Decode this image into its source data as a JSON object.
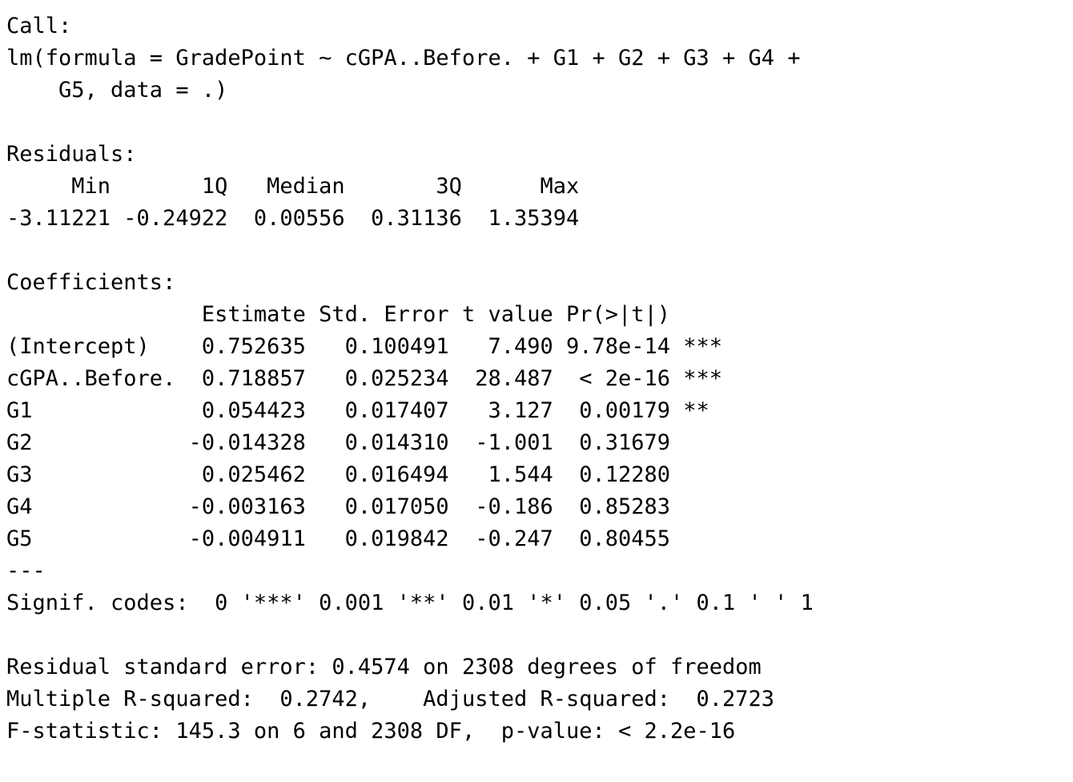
{
  "output": {
    "call": {
      "header": "Call:",
      "line1": "lm(formula = GradePoint ~ cGPA..Before. + G1 + G2 + G3 + G4 +",
      "line2": "    G5, data = .)"
    },
    "residuals": {
      "header": "Residuals:",
      "labels": "     Min       1Q   Median       3Q      Max ",
      "values": "-3.11221 -0.24922  0.00556  0.31136  1.35394 "
    },
    "coefficients": {
      "header": "Coefficients:",
      "column_header": "               Estimate Std. Error t value Pr(>|t|)    ",
      "rows": [
        "(Intercept)    0.752635   0.100491   7.490 9.78e-14 ***",
        "cGPA..Before.  0.718857   0.025234  28.487  < 2e-16 ***",
        "G1             0.054423   0.017407   3.127  0.00179 ** ",
        "G2            -0.014328   0.014310  -1.001  0.31679    ",
        "G3             0.025462   0.016494   1.544  0.12280    ",
        "G4            -0.003163   0.017050  -0.186  0.85283    ",
        "G5            -0.004911   0.019842  -0.247  0.80455    "
      ],
      "separator": "---",
      "signif_codes": "Signif. codes:  0 '***' 0.001 '**' 0.01 '*' 0.05 '.' 0.1 ' ' 1"
    },
    "summary": {
      "residual_se": "Residual standard error: 0.4574 on 2308 degrees of freedom",
      "r_squared": "Multiple R-squared:  0.2742,\tAdjusted R-squared:  0.2723 ",
      "f_statistic": "F-statistic: 145.3 on 6 and 2308 DF,  p-value: < 2.2e-16"
    }
  }
}
